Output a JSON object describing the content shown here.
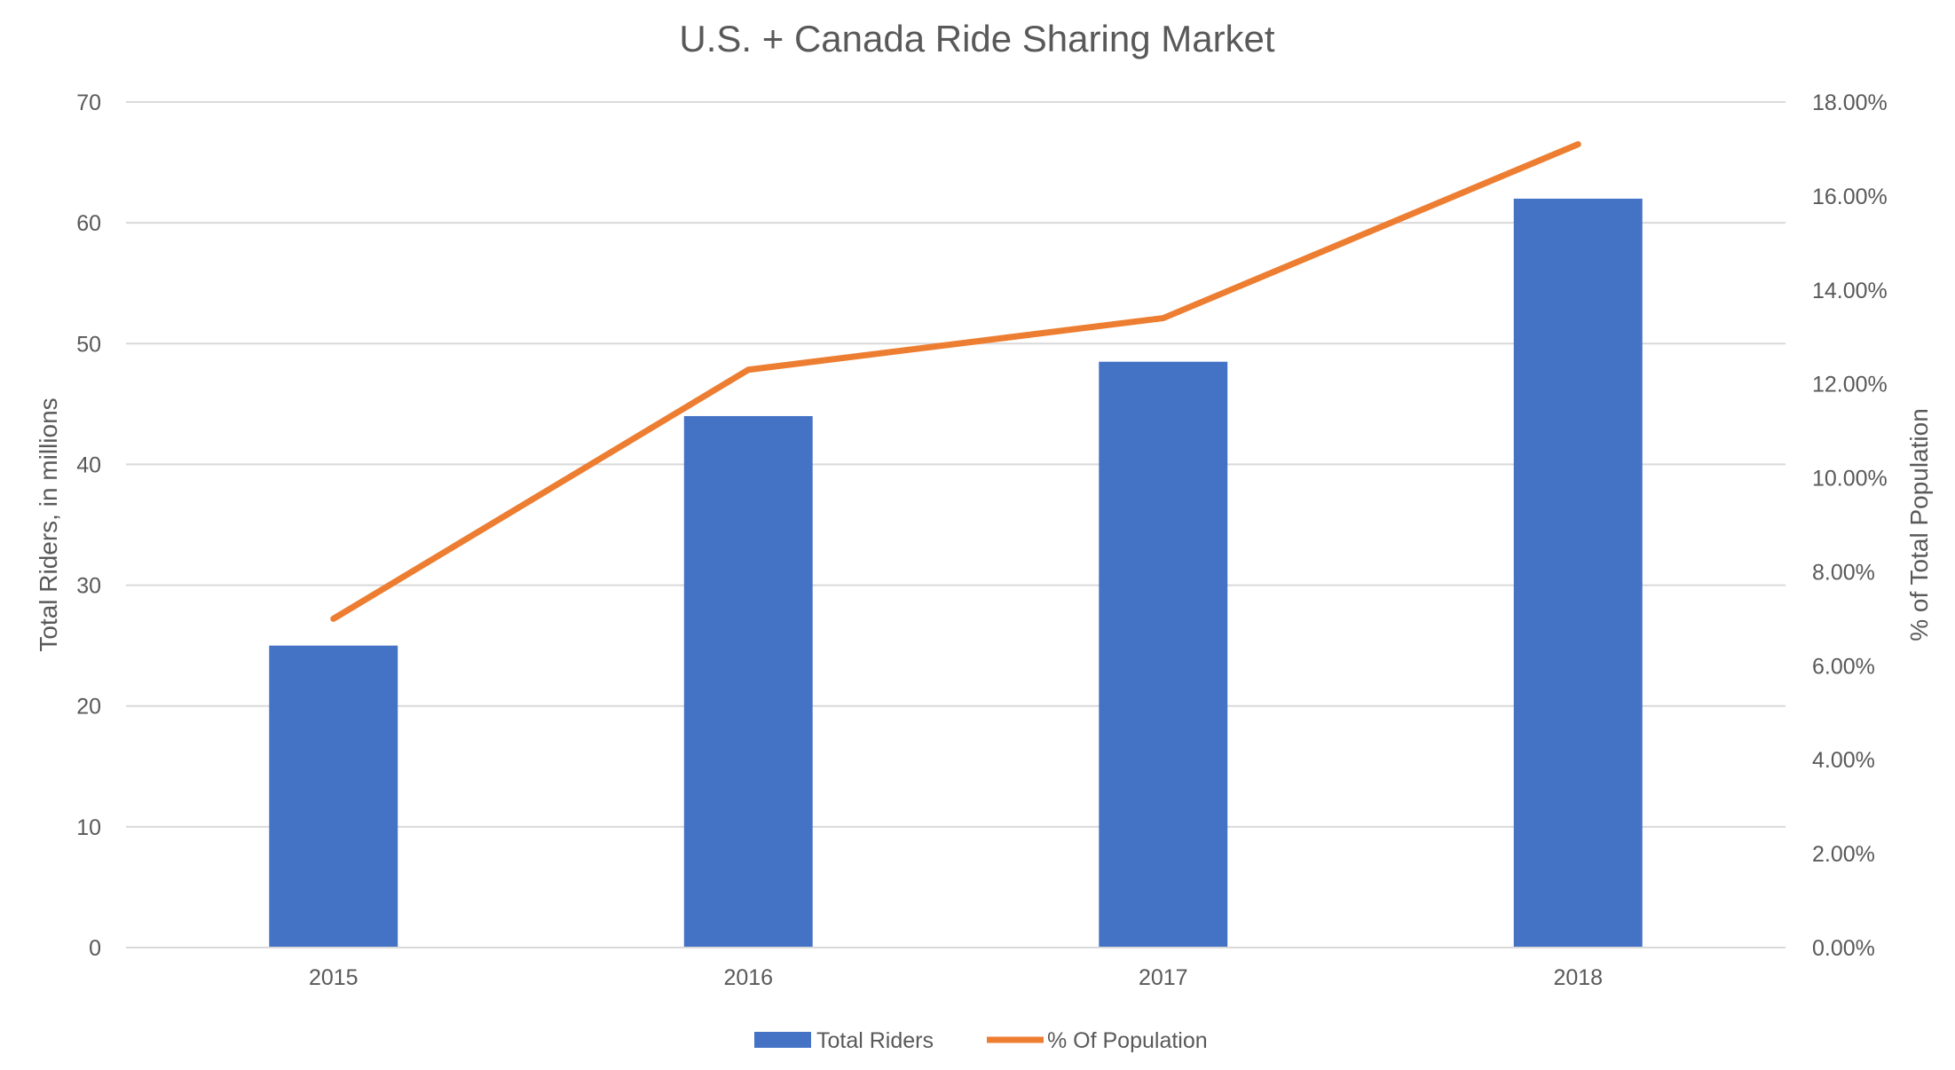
{
  "chart_data": {
    "type": "bar",
    "title": "U.S. + Canada Ride Sharing Market",
    "categories": [
      "2015",
      "2016",
      "2017",
      "2018"
    ],
    "series": [
      {
        "name": "Total Riders",
        "type": "bar",
        "axis": "left",
        "color": "#4472C4",
        "values": [
          25,
          44,
          48.5,
          62
        ]
      },
      {
        "name": "% Of Population",
        "type": "line",
        "axis": "right",
        "color": "#ED7D31",
        "values": [
          0.07,
          0.123,
          0.134,
          0.171
        ]
      }
    ],
    "ylabel": "Total Riders, in millions",
    "ylim": [
      0,
      70
    ],
    "yticks": [
      0,
      10,
      20,
      30,
      40,
      50,
      60,
      70
    ],
    "y2label": "% of Total Population",
    "y2lim": [
      0,
      0.18
    ],
    "y2ticks": [
      "0.00%",
      "2.00%",
      "4.00%",
      "6.00%",
      "8.00%",
      "10.00%",
      "12.00%",
      "14.00%",
      "16.00%",
      "18.00%"
    ],
    "grid": true,
    "legend_position": "bottom"
  }
}
